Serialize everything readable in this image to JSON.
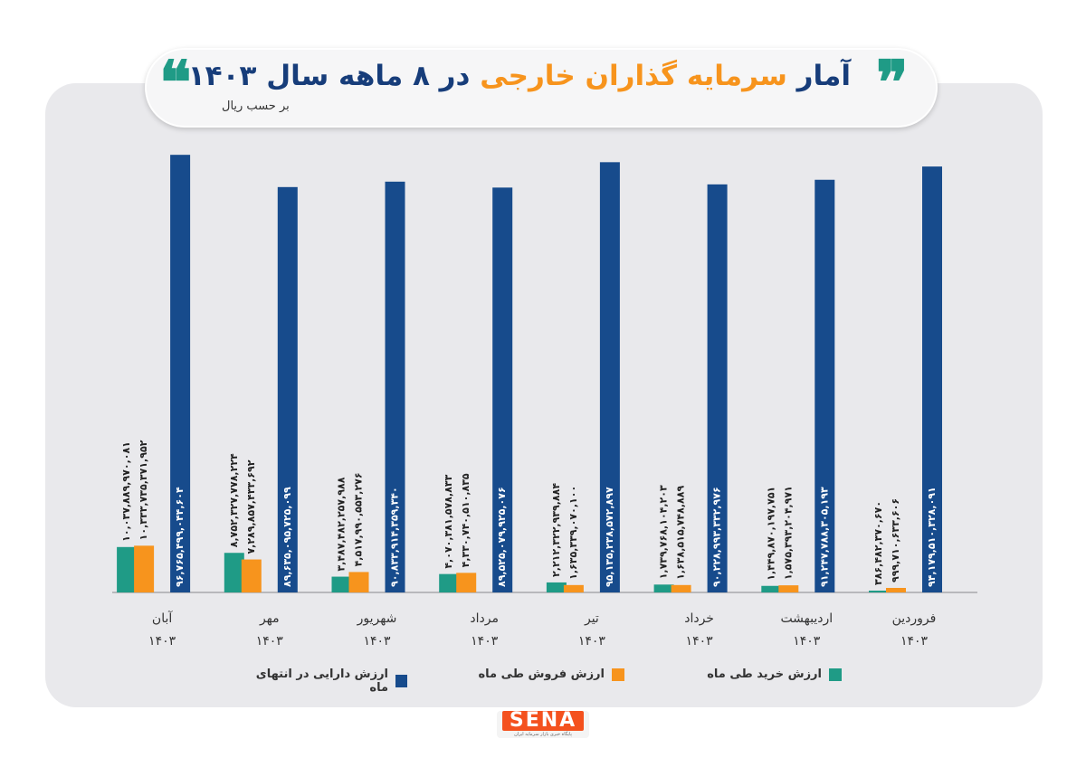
{
  "title": {
    "quote_open": "❞",
    "quote_close": "❝",
    "part1": "آمار ",
    "highlight": "سرمایه گذاران خارجی",
    "part2": " در ۸ ماهه سال ۱۴۰۳",
    "subtitle": "بر حسب ریال"
  },
  "colors": {
    "buy": "#1f9b86",
    "sell": "#f7941d",
    "assets": "#174b8c",
    "title": "#173d7a",
    "highlight": "#f7941d"
  },
  "legend": {
    "assets": "ارزش دارایی در انتهای ماه",
    "sell": "ارزش فروش طی ماه",
    "buy": "ارزش خرید طی ماه"
  },
  "logo": {
    "text": "SENA",
    "sub": "پایگاه خبری بازار سرمایه ایران"
  },
  "chart_data": {
    "type": "bar",
    "year_label": "۱۴۰۳",
    "categories": [
      "فروردین",
      "اردیبهشت",
      "خرداد",
      "تیر",
      "مرداد",
      "شهریور",
      "مهر",
      "آبان"
    ],
    "series": [
      {
        "name": "ارزش خرید طی ماه",
        "values": [
          386482370670,
          1449870197751,
          1739768104203,
          2212322939884,
          4070381578833,
          3487482257988,
          8752327778224,
          10037889970081
        ],
        "labels": [
          "۳۸۶,۴۸۲,۳۷۰,۶۷۰",
          "۱,۴۴۹,۸۷۰,۱۹۷,۷۵۱",
          "۱,۷۳۹,۷۶۸,۱۰۴,۲۰۳",
          "۲,۲۱۲,۳۲۲,۹۳۹,۸۸۴",
          "۴,۰۷۰,۳۸۱,۵۷۸,۸۳۳",
          "۳,۴۸۷,۴۸۲,۲۵۷,۹۸۸",
          "۸,۷۵۲,۳۲۷,۷۷۸,۲۲۴",
          "۱۰,۰۳۷,۸۸۹,۹۷۰,۰۸۱"
        ]
      },
      {
        "name": "ارزش فروش طی ماه",
        "values": [
          999710633606,
          1575393204971,
          1638515748889,
          1635339070100,
          4330740510835,
          4517990553276,
          7289857433692,
          10333735371952
        ],
        "labels": [
          "۹۹۹,۷۱۰,۶۳۳,۶۰۶",
          "۱,۵۷۵,۳۹۳,۲۰۴,۹۷۱",
          "۱,۶۳۸,۵۱۵,۷۴۸,۸۸۹",
          "۱,۶۳۵,۳۳۹,۰۷۰,۱۰۰",
          "۴,۳۳۰,۷۴۰,۵۱۰,۸۳۵",
          "۴,۵۱۷,۹۹۰,۵۵۳,۲۷۶",
          "۷,۲۸۹,۸۵۷,۴۳۳,۶۹۲",
          "۱۰,۳۳۳,۷۳۵,۳۷۱,۹۵۲"
        ]
      },
      {
        "name": "ارزش دارایی در انتهای ماه",
        "values": [
          94179510328091,
          91247788305193,
          90228993332976,
          95135238572897,
          89525079925076,
          90833914359340,
          89635095725099,
          96765499044604
        ],
        "labels": [
          "۹۴,۱۷۹,۵۱۰,۳۲۸,۰۹۱",
          "۹۱,۲۴۷,۷۸۸,۳۰۵,۱۹۳",
          "۹۰,۲۲۸,۹۹۳,۳۳۲,۹۷۶",
          "۹۵,۱۳۵,۲۳۸,۵۷۲,۸۹۷",
          "۸۹,۵۲۵,۰۷۹,۹۲۵,۰۷۶",
          "۹۰,۸۳۳,۹۱۴,۳۵۹,۳۴۰",
          "۸۹,۶۳۵,۰۹۵,۷۲۵,۰۹۹",
          "۹۶,۷۶۵,۴۹۹,۰۴۴,۶۰۴"
        ]
      }
    ],
    "grid": false,
    "legend_position": "bottom"
  }
}
